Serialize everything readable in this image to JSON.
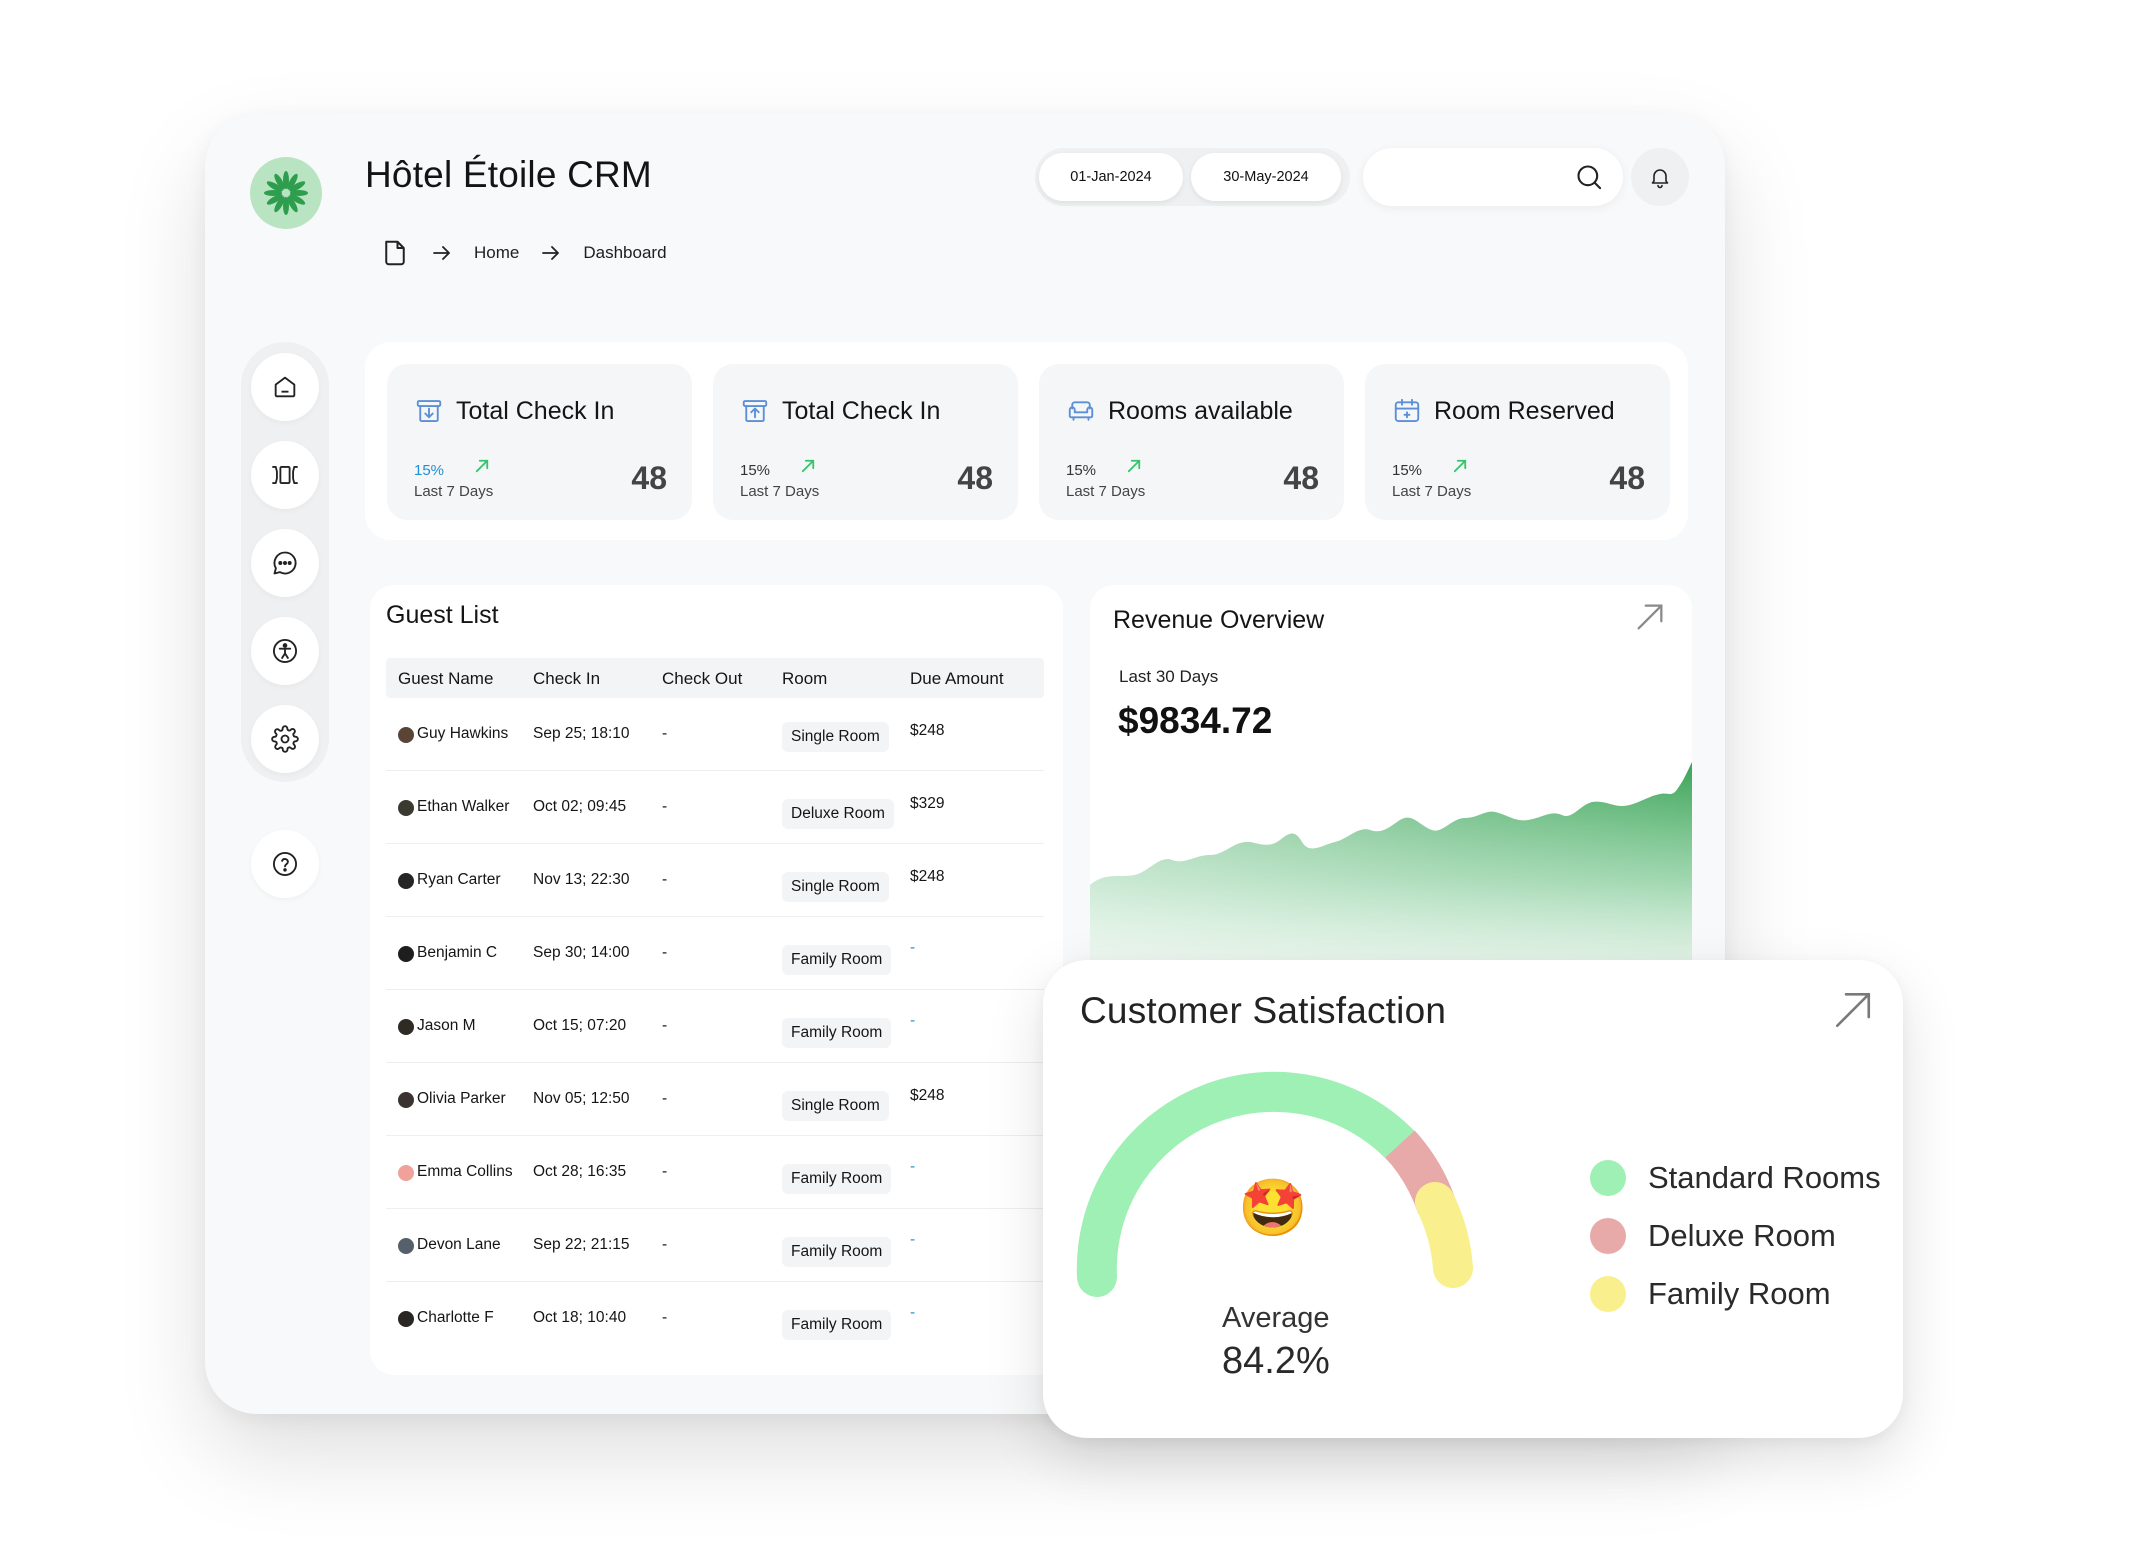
{
  "app": {
    "title": "Hôtel Étoile CRM"
  },
  "breadcrumb": {
    "home": "Home",
    "current": "Dashboard"
  },
  "dates": {
    "start": "01-Jan-2024",
    "end": "30-May-2024"
  },
  "search": {
    "value": "",
    "placeholder": ""
  },
  "sidebar": {
    "items": [
      {
        "name": "home-icon"
      },
      {
        "name": "rooms-icon"
      },
      {
        "name": "chat-icon"
      },
      {
        "name": "accessibility-icon"
      },
      {
        "name": "gear-icon"
      },
      {
        "name": "help-icon"
      }
    ]
  },
  "stats": [
    {
      "title": "Total Check In",
      "percent": "15%",
      "period": "Last 7 Days",
      "value": "48",
      "icon": "check-in-icon"
    },
    {
      "title": "Total Check In",
      "percent": "15%",
      "period": "Last 7 Days",
      "value": "48",
      "icon": "check-out-icon"
    },
    {
      "title": "Rooms available",
      "percent": "15%",
      "period": "Last 7 Days",
      "value": "48",
      "icon": "sofa-icon"
    },
    {
      "title": "Room Reserved",
      "percent": "15%",
      "period": "Last 7 Days",
      "value": "48",
      "icon": "calendar-icon"
    }
  ],
  "guest_list": {
    "title": "Guest List",
    "columns": [
      "Guest Name",
      "Check In",
      "Check Out",
      "Room",
      "Due Amount"
    ],
    "rows": [
      {
        "name": "Guy Hawkins",
        "check_in": "Sep 25; 18:10",
        "check_out": "-",
        "room": "Single Room",
        "due": "$248"
      },
      {
        "name": "Ethan Walker",
        "check_in": "Oct 02; 09:45",
        "check_out": "-",
        "room": "Deluxe Room",
        "due": "$329"
      },
      {
        "name": "Ryan Carter",
        "check_in": "Nov 13; 22:30",
        "check_out": "-",
        "room": "Single Room",
        "due": "$248"
      },
      {
        "name": "Benjamin C",
        "check_in": "Sep 30; 14:00",
        "check_out": "-",
        "room": "Family Room",
        "due": "-"
      },
      {
        "name": "Jason M",
        "check_in": "Oct 15; 07:20",
        "check_out": "-",
        "room": "Family Room",
        "due": "-"
      },
      {
        "name": "Olivia Parker",
        "check_in": "Nov 05; 12:50",
        "check_out": "-",
        "room": "Single Room",
        "due": "$248"
      },
      {
        "name": "Emma Collins",
        "check_in": "Oct 28; 16:35",
        "check_out": "-",
        "room": "Family Room",
        "due": "-"
      },
      {
        "name": "Devon Lane",
        "check_in": "Sep 22; 21:15",
        "check_out": "-",
        "room": "Family Room",
        "due": "-"
      },
      {
        "name": "Charlotte F",
        "check_in": "Oct 18; 10:40",
        "check_out": "-",
        "room": "Family Room",
        "due": "-"
      }
    ]
  },
  "revenue": {
    "title": "Revenue Overview",
    "period": "Last 30 Days",
    "value": "$9834.72"
  },
  "satisfaction": {
    "title": "Customer Satisfaction",
    "average_label": "Average",
    "average_value": "84.2%",
    "emoji": "🤩",
    "legend": [
      {
        "label": "Standard Rooms",
        "color": "#9ef0b4"
      },
      {
        "label": "Deluxe Room",
        "color": "#e8a9a9"
      },
      {
        "label": "Family Room",
        "color": "#f9ef8c"
      }
    ]
  },
  "colors": {
    "brand_green": "#2e9e4e",
    "accent_blue": "#1f8fd6",
    "trend_up": "#35c46a"
  }
}
